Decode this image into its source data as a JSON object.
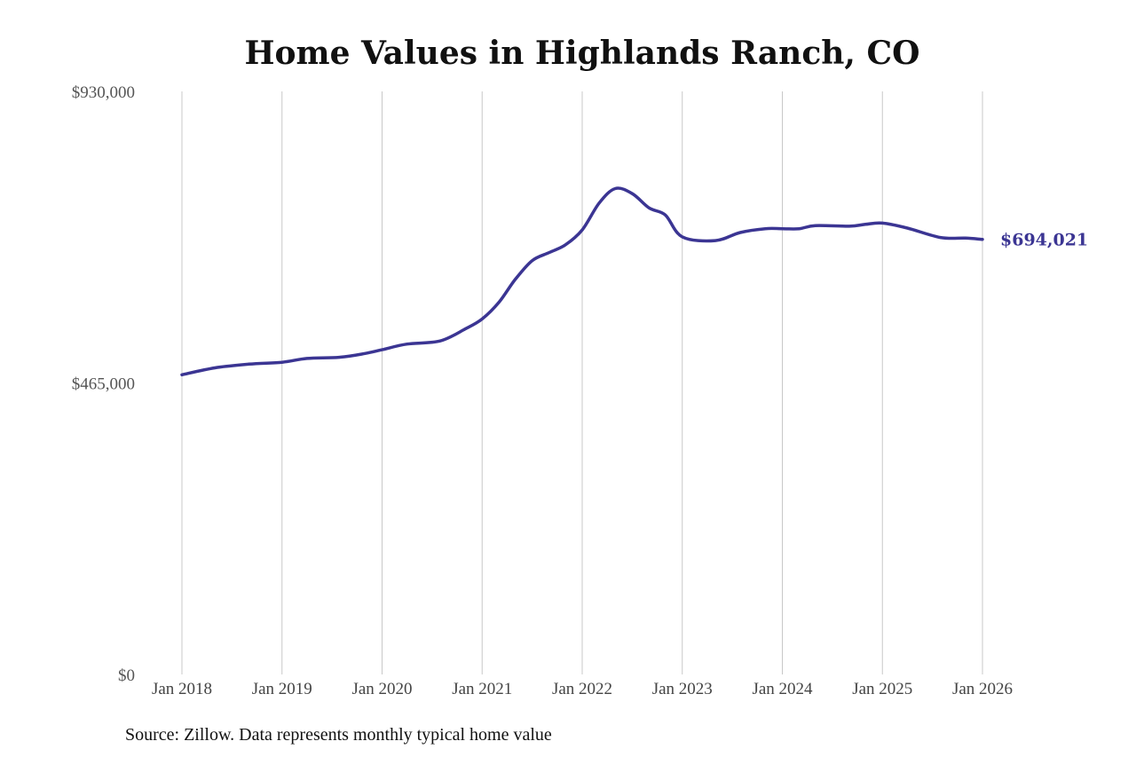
{
  "chart_data": {
    "type": "line",
    "title": "Home Values in Highlands Ranch, CO",
    "xlabel": "",
    "ylabel": "",
    "ylim": [
      0,
      930000
    ],
    "y_ticks": [
      {
        "value": 0,
        "label": "$0"
      },
      {
        "value": 465000,
        "label": "$465,000"
      },
      {
        "value": 930000,
        "label": "$930,000"
      }
    ],
    "x_ticks": [
      "Jan 2018",
      "Jan 2019",
      "Jan 2020",
      "Jan 2021",
      "Jan 2022",
      "Jan 2023",
      "Jan 2024",
      "Jan 2025",
      "Jan 2026"
    ],
    "x_range": [
      2018.0,
      2026.0
    ],
    "grid": "vertical",
    "series": [
      {
        "color": "#3b3593",
        "end_label": "$694,021",
        "points": [
          [
            2018.0,
            478000
          ],
          [
            2018.33,
            489000
          ],
          [
            2018.67,
            495000
          ],
          [
            2019.0,
            498000
          ],
          [
            2019.25,
            504000
          ],
          [
            2019.58,
            506000
          ],
          [
            2019.83,
            512000
          ],
          [
            2020.0,
            518000
          ],
          [
            2020.25,
            527000
          ],
          [
            2020.58,
            532000
          ],
          [
            2020.83,
            551000
          ],
          [
            2021.0,
            567000
          ],
          [
            2021.17,
            594000
          ],
          [
            2021.33,
            630000
          ],
          [
            2021.5,
            660000
          ],
          [
            2021.67,
            673000
          ],
          [
            2021.83,
            685000
          ],
          [
            2022.0,
            709000
          ],
          [
            2022.17,
            752000
          ],
          [
            2022.33,
            775000
          ],
          [
            2022.5,
            767000
          ],
          [
            2022.67,
            744000
          ],
          [
            2022.83,
            733000
          ],
          [
            2023.0,
            698000
          ],
          [
            2023.33,
            692000
          ],
          [
            2023.58,
            705000
          ],
          [
            2023.83,
            711000
          ],
          [
            2024.0,
            711000
          ],
          [
            2024.17,
            711000
          ],
          [
            2024.33,
            716000
          ],
          [
            2024.67,
            715000
          ],
          [
            2024.83,
            718000
          ],
          [
            2025.0,
            720000
          ],
          [
            2025.25,
            712000
          ],
          [
            2025.58,
            697000
          ],
          [
            2025.83,
            696000
          ],
          [
            2026.0,
            694021
          ]
        ]
      }
    ]
  },
  "footer": {
    "source": "Source: Zillow. Data represents monthly typical home value"
  }
}
